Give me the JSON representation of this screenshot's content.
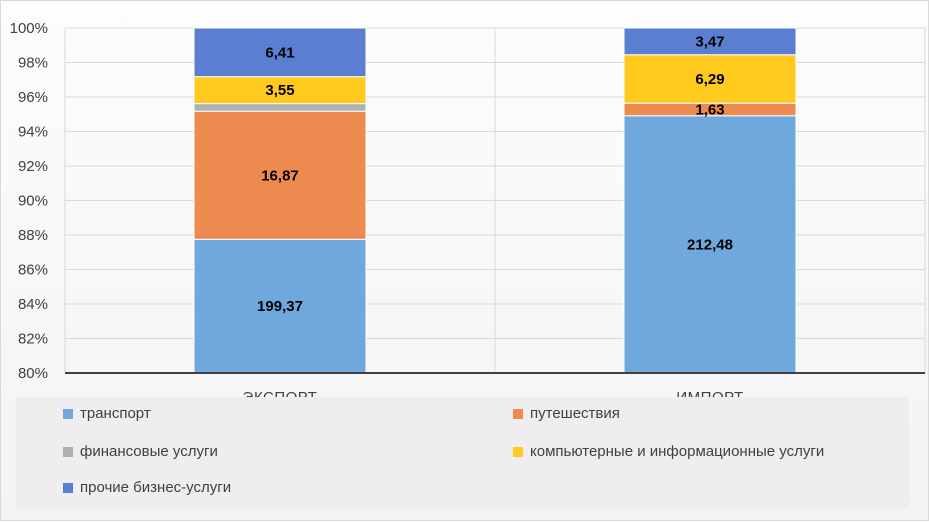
{
  "chart_data": {
    "type": "bar",
    "stacked": "percent",
    "categories": [
      "ЭКСПОРТ",
      "ИМПОРТ"
    ],
    "series": [
      {
        "name": "транспорт",
        "color": "#6fa8dc",
        "values": [
          199.37,
          212.48
        ],
        "labels": [
          "199,37",
          "212,48"
        ]
      },
      {
        "name": "путешествия",
        "color": "#ed8a4f",
        "values": [
          16.87,
          1.63
        ],
        "labels": [
          "16,87",
          "1,63"
        ]
      },
      {
        "name": "финансовые услуги",
        "color": "#b0b0b0",
        "values": [
          1.0,
          0
        ],
        "labels": [
          "",
          ""
        ]
      },
      {
        "name": "компьютерные и информационные услуги",
        "color": "#ffc91e",
        "values": [
          3.55,
          6.29
        ],
        "labels": [
          "3,55",
          "6,29"
        ]
      },
      {
        "name": "прочие бизнес-услуги",
        "color": "#5b7fd0",
        "values": [
          6.41,
          3.47
        ],
        "labels": [
          "6,41",
          "3,47"
        ]
      }
    ],
    "ylim": [
      80,
      100
    ],
    "yticks": [
      80,
      82,
      84,
      86,
      88,
      90,
      92,
      94,
      96,
      98,
      100
    ],
    "ytick_labels": [
      "80%",
      "82%",
      "84%",
      "86%",
      "88%",
      "90%",
      "92%",
      "94%",
      "96%",
      "98%",
      "100%"
    ],
    "grid": true,
    "legend_position": "bottom",
    "title": "",
    "xlabel": "",
    "ylabel": ""
  }
}
